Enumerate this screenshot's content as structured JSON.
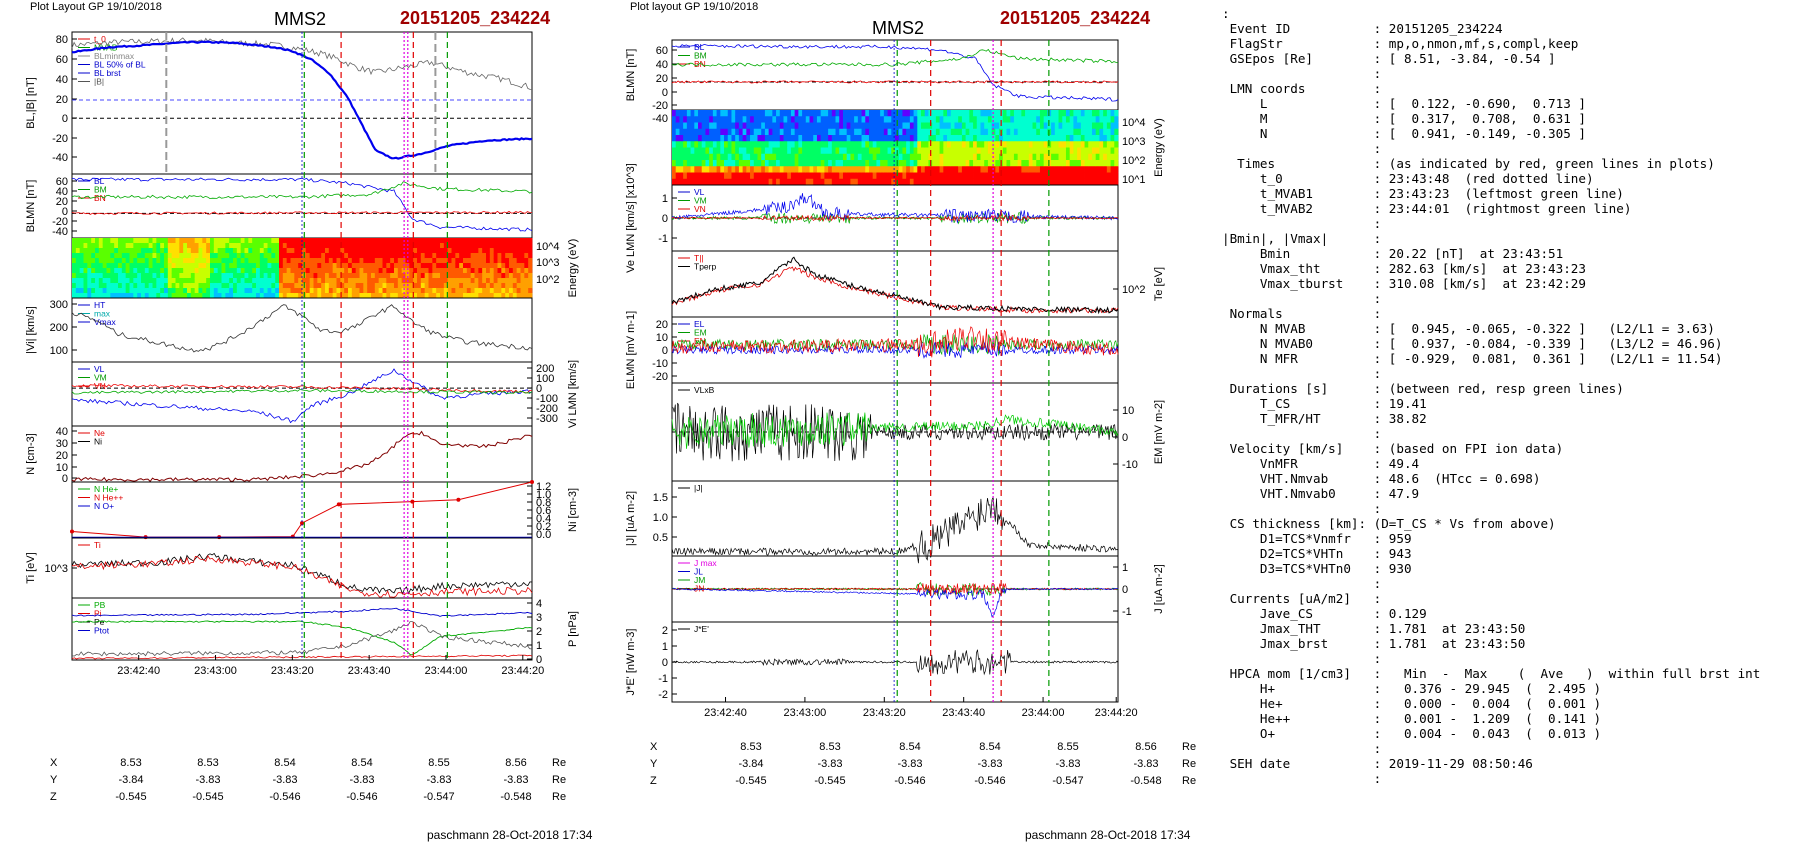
{
  "header_left": {
    "layout": "Plot Layout GP 19/10/2018",
    "spacecraft": "MMS2",
    "event": "20151205_234224"
  },
  "header_mid": {
    "layout": "Plot layout GP 19/10/2018",
    "spacecraft": "MMS2",
    "event": "20151205_234224"
  },
  "footer_left": "paschmann 28-Oct-2018 17:34",
  "footer_mid": "paschmann 28-Oct-2018 17:34",
  "time_ticks": [
    "23:42:40",
    "23:43:00",
    "23:43:20",
    "23:43:40",
    "23:44:00",
    "23:44:20"
  ],
  "pos_table": {
    "X": [
      "8.53",
      "8.53",
      "8.54",
      "8.54",
      "8.55",
      "8.56"
    ],
    "Y": [
      "-3.84",
      "-3.83",
      "-3.83",
      "-3.83",
      "-3.83",
      "-3.83"
    ],
    "Z": [
      "-0.545",
      "-0.545",
      "-0.546",
      "-0.546",
      "-0.547",
      "-0.548"
    ],
    "unit": "Re"
  },
  "chart_data": [
    {
      "type": "line",
      "title": "MMS2",
      "panels": [
        {
          "ylabel": "BL,|B| [nT]",
          "yticks": [
            "80",
            "60",
            "40",
            "20",
            "0",
            "-20",
            "-40"
          ],
          "ylim": [
            -55,
            85
          ],
          "legend": [
            "t_0",
            "MVAB",
            "BLminmax",
            "BL 50% of BL",
            "BL brst",
            "|B|"
          ],
          "series": [
            {
              "name": "BL brst",
              "t": [
                0,
                8,
                16,
                22,
                26,
                30,
                36,
                40,
                44,
                48,
                52,
                56,
                60,
                66,
                70,
                76,
                82,
                90,
                100
              ],
              "values": [
                65,
                70,
                72,
                74,
                75,
                75,
                74,
                72,
                70,
                66,
                58,
                44,
                20,
                -32,
                -40,
                -35,
                -27,
                -22,
                -20
              ]
            },
            {
              "name": "|B|",
              "t": [
                0,
                10,
                20,
                26,
                30,
                36,
                42,
                46,
                50,
                54,
                58,
                62,
                66,
                72,
                78,
                86,
                94,
                100
              ],
              "values": [
                72,
                75,
                76,
                77,
                76,
                74,
                73,
                71,
                68,
                64,
                58,
                50,
                45,
                50,
                55,
                45,
                38,
                30
              ]
            }
          ]
        },
        {
          "ylabel": "BLMN [nT]",
          "yticks": [
            "60",
            "40",
            "20",
            "0",
            "-20",
            "-40"
          ],
          "ylim": [
            -45,
            72
          ],
          "legend": [
            "BL",
            "BM",
            "BN"
          ]
        },
        {
          "ylabel": "Energy (eV)",
          "yticks": [
            "10^4",
            "10^3",
            "10^2"
          ]
        },
        {
          "ylabel": "|Vi| [km/s]",
          "yticks": [
            "300",
            "200",
            "100"
          ],
          "ylim": [
            0,
            320
          ],
          "legend": [
            "HT",
            "max",
            "Vmax"
          ],
          "series": [
            {
              "name": "|Vi|",
              "t": [
                0,
                6,
                10,
                16,
                22,
                26,
                30,
                34,
                38,
                42,
                46,
                50,
                54,
                58,
                62,
                66,
                70,
                74,
                78,
                82,
                86,
                90,
                95,
                100
              ],
              "values": [
                250,
                200,
                140,
                110,
                80,
                60,
                70,
                110,
                160,
                220,
                280,
                230,
                160,
                150,
                180,
                240,
                280,
                200,
                150,
                120,
                100,
                90,
                80,
                70
              ]
            }
          ]
        },
        {
          "ylabel": "Vi LMN [km/s]",
          "yticks": [
            "200",
            "100",
            "0",
            "-100",
            "-200",
            "-300"
          ],
          "ylim": [
            -320,
            220
          ],
          "legend": [
            "VL",
            "VM",
            "VN"
          ]
        },
        {
          "ylabel": "N [cm-3]",
          "yticks": [
            "40",
            "30",
            "20",
            "10",
            "0"
          ],
          "ylim": [
            0,
            45
          ],
          "legend": [
            "Ne",
            "Ni"
          ],
          "series": [
            {
              "name": "Ne",
              "t": [
                0,
                20,
                40,
                48,
                54,
                60,
                64,
                68,
                72,
                76,
                80,
                84,
                88,
                92,
                96,
                100
              ],
              "values": [
                2,
                2,
                2,
                4,
                6,
                10,
                14,
                22,
                36,
                40,
                30,
                30,
                28,
                30,
                34,
                38
              ]
            }
          ]
        },
        {
          "ylabel": "Ni [cm-3]",
          "yticks": [
            "1.2",
            "1.0",
            "0.8",
            "0.6",
            "0.4",
            "0.2",
            "0.0"
          ],
          "ylim": [
            0,
            1.2
          ],
          "legend": [
            "N He+",
            "N He++",
            "N O+"
          ],
          "series": [
            {
              "name": "N He++",
              "t": [
                0,
                16,
                32,
                48,
                50,
                58,
                74,
                84,
                100
              ],
              "values": [
                0.14,
                0.02,
                0.02,
                0.03,
                0.32,
                0.72,
                0.78,
                0.82,
                1.2
              ]
            }
          ]
        },
        {
          "ylabel": "Ti [eV]",
          "yticks": [
            "10^3"
          ],
          "legend": [
            "Ti"
          ]
        },
        {
          "ylabel": "P [nPa]",
          "yticks": [
            "4",
            "3",
            "2",
            "1",
            "0"
          ],
          "ylim": [
            0,
            4.2
          ],
          "legend": [
            "PB",
            "Pi",
            "Pe",
            "Ptot"
          ]
        }
      ]
    },
    {
      "type": "line",
      "title": "MMS2",
      "panels": [
        {
          "ylabel": "BLMN [nT]",
          "yticks": [
            "60",
            "40",
            "20",
            "0",
            "-20",
            "-40"
          ],
          "ylim": [
            -48,
            72
          ],
          "legend": [
            "BL",
            "BM",
            "BN"
          ]
        },
        {
          "ylabel": "Energy (eV)",
          "yticks": [
            "10^4",
            "10^3",
            "10^2",
            "10^1"
          ]
        },
        {
          "ylabel": "Ve LMN [km/s] [x10^3]",
          "yticks": [
            "1",
            "0",
            "-1"
          ],
          "ylim": [
            -1.6,
            1.6
          ],
          "legend": [
            "VL",
            "VM",
            "VN"
          ]
        },
        {
          "ylabel": "Te [eV]",
          "yticks": [
            "10^2"
          ],
          "legend": [
            "T||",
            "Tperp"
          ]
        },
        {
          "ylabel": "ELMN [mV m-1]",
          "yticks": [
            "20",
            "10",
            "0",
            "-10",
            "-20"
          ],
          "ylim": [
            -25,
            25
          ],
          "legend": [
            "EL",
            "EM",
            "EN"
          ]
        },
        {
          "ylabel": "EM [mV m-2]",
          "yticks": [
            "10",
            "0",
            "-10"
          ],
          "ylim": [
            -15,
            15
          ],
          "legend": [
            "VLxB"
          ]
        },
        {
          "ylabel": "|J| [uA m-2]",
          "yticks": [
            "1.5",
            "1.0",
            "0.5"
          ],
          "ylim": [
            0,
            1.7
          ],
          "legend": [
            "|J|"
          ]
        },
        {
          "ylabel": "J [uA m-2]",
          "yticks": [
            "1",
            "0",
            "-1"
          ],
          "ylim": [
            -1.6,
            1.6
          ],
          "legend": [
            "J max",
            "JL",
            "JM",
            "JN"
          ]
        },
        {
          "ylabel": "J*E' [nW m-3]",
          "yticks": [
            "2",
            "1",
            "0",
            "-1",
            "-2"
          ],
          "ylim": [
            -2.3,
            2.3
          ],
          "legend": [
            "J*E'"
          ]
        }
      ]
    }
  ],
  "event_info": [
    ":",
    " Event ID           : 20151205_234224",
    " FlagStr            : mp,o,nmon,mf,s,compl,keep",
    " GSEpos [Re]        : [ 8.51, -3.84, -0.54 ]",
    "                    :",
    " LMN coords         :",
    "     L              : [  0.122, -0.690,  0.713 ]",
    "     M              : [  0.317,  0.708,  0.631 ]",
    "     N              : [  0.941, -0.149, -0.305 ]",
    "                    :",
    "  Times             : (as indicated by red, green lines in plots)",
    "     t_0            : 23:43:48  (red dotted line)",
    "     t_MVAB1        : 23:43:23  (leftmost green line)",
    "     t_MVAB2        : 23:44:01  (rightmost green line)",
    "                    :",
    "|Bmin|, |Vmax|      :",
    "     Bmin           : 20.22 [nT]  at 23:43:51",
    "     Vmax_tht       : 282.63 [km/s]  at 23:43:23",
    "     Vmax_tburst    : 310.08 [km/s]  at 23:42:29",
    "                    :",
    " Normals            :",
    "     N MVAB         : [  0.945, -0.065, -0.322 ]   (L2/L1 = 3.63)",
    "     N MVAB0        : [  0.937, -0.084, -0.339 ]   (L3/L2 = 46.96)",
    "     N MFR          : [ -0.929,  0.081,  0.361 ]   (L2/L1 = 11.54)",
    "                    :",
    " Durations [s]      : (between red, resp green lines)",
    "     T_CS           : 19.41",
    "     T_MFR/HT       : 38.82",
    "                    :",
    " Velocity [km/s]    : (based on FPI ion data)",
    "     VnMFR          : 49.4",
    "     VHT.Nmvab      : 48.6  (HTcc = 0.698)",
    "     VHT.Nmvab0     : 47.9",
    "                    :",
    " CS thickness [km]: (D=T_CS * Vs from above)",
    "     D1=TCS*Vnmfr   : 959",
    "     D2=TCS*VHTn    : 943",
    "     D3=TCS*VHTn0   : 930",
    "                    :",
    " Currents [uA/m2]   :",
    "     Jave_CS        : 0.129",
    "     Jmax_THT       : 1.781  at 23:43:50",
    "     Jmax_brst      : 1.781  at 23:43:50",
    "                    :",
    " HPCA mom [1/cm3]   :   Min  -  Max    (  Ave   )  within full brst int",
    "     H+             :   0.376 - 29.945  (  2.495 )",
    "     He+            :   0.000 -  0.004  (  0.001 )",
    "     He++           :   0.001 -  1.209  (  0.141 )",
    "     O+             :   0.004 -  0.043  (  0.013 )",
    "                    :",
    " SEH date           : 2019-11-29 08:50:46",
    "                    :"
  ]
}
